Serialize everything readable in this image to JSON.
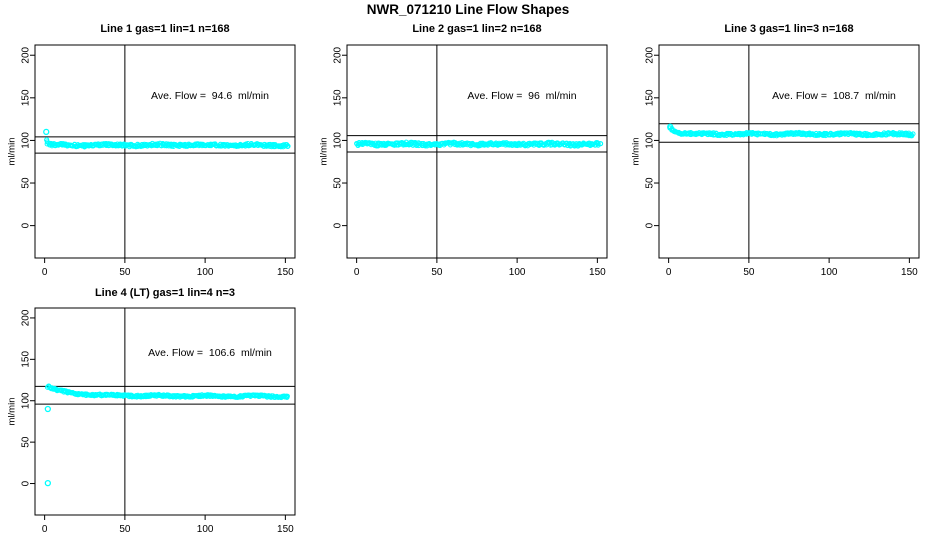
{
  "page_title": "NWR_071210  Line Flow Shapes",
  "colors": {
    "marker": "#00FFFF",
    "axis": "#000000",
    "background": "#FFFFFF",
    "text": "#000000"
  },
  "chart_data": [
    {
      "type": "scatter",
      "title": "Line 1 gas=1 lin=1 n=168",
      "annotation": "Ave. Flow =  94.6  ml/min",
      "ave_flow_ml_min": 94.6,
      "n": 168,
      "xlabel": "",
      "ylabel": "ml/min",
      "xlim": [
        -6,
        156
      ],
      "ylim": [
        -38,
        212
      ],
      "xticks": [
        0,
        50,
        100,
        150
      ],
      "yticks": [
        0,
        50,
        100,
        150,
        200
      ],
      "vline_x": 50,
      "hlines": [
        104.1,
        85.1
      ],
      "band": {
        "thickness": 2.5,
        "shape": [
          [
            1,
            101
          ],
          [
            2,
            96.5
          ],
          [
            4,
            94.8
          ],
          [
            8,
            94.3
          ],
          [
            20,
            94.2
          ],
          [
            40,
            94.4
          ],
          [
            70,
            94.6
          ],
          [
            100,
            94.7
          ],
          [
            130,
            94.4
          ],
          [
            152,
            94.3
          ]
        ]
      },
      "outliers": [
        [
          1,
          110
        ]
      ]
    },
    {
      "type": "scatter",
      "title": "Line 2 gas=1 lin=2 n=168",
      "annotation": "Ave. Flow =  96  ml/min",
      "ave_flow_ml_min": 96,
      "n": 168,
      "xlabel": "",
      "ylabel": "ml/min",
      "xlim": [
        -6,
        156
      ],
      "ylim": [
        -38,
        212
      ],
      "xticks": [
        0,
        50,
        100,
        150
      ],
      "yticks": [
        0,
        50,
        100,
        150,
        200
      ],
      "vline_x": 50,
      "hlines": [
        105.6,
        86.4
      ],
      "band": {
        "thickness": 3,
        "shape": [
          [
            0,
            94.5
          ],
          [
            2,
            95.8
          ],
          [
            10,
            95.8
          ],
          [
            40,
            95.6
          ],
          [
            80,
            95.5
          ],
          [
            120,
            95.5
          ],
          [
            152,
            95.3
          ]
        ]
      },
      "outliers": []
    },
    {
      "type": "scatter",
      "title": "Line 3 gas=1 lin=3 n=168",
      "annotation": "Ave. Flow =  108.7  ml/min",
      "ave_flow_ml_min": 108.7,
      "n": 168,
      "xlabel": "",
      "ylabel": "ml/min",
      "xlim": [
        -6,
        156
      ],
      "ylim": [
        -38,
        212
      ],
      "xticks": [
        0,
        50,
        100,
        150
      ],
      "yticks": [
        0,
        50,
        100,
        150,
        200
      ],
      "vline_x": 50,
      "hlines": [
        119.6,
        97.8
      ],
      "band": {
        "thickness": 2.5,
        "shape": [
          [
            1,
            115.5
          ],
          [
            2,
            112.5
          ],
          [
            4,
            110.2
          ],
          [
            7,
            108.8
          ],
          [
            12,
            108.1
          ],
          [
            20,
            107.7
          ],
          [
            40,
            107.5
          ],
          [
            80,
            107.4
          ],
          [
            120,
            107.4
          ],
          [
            152,
            107.1
          ]
        ]
      },
      "outliers": [
        [
          1,
          116
        ]
      ]
    },
    {
      "type": "scatter",
      "title": "Line 4 (LT) gas=1 lin=4 n=3",
      "annotation": "Ave. Flow =  106.6  ml/min",
      "ave_flow_ml_min": 106.6,
      "n": 3,
      "xlabel": "",
      "ylabel": "ml/min",
      "xlim": [
        -6,
        156
      ],
      "ylim": [
        -38,
        212
      ],
      "xticks": [
        0,
        50,
        100,
        150
      ],
      "yticks": [
        0,
        50,
        100,
        150,
        200
      ],
      "vline_x": 50,
      "hlines": [
        117.3,
        95.9
      ],
      "band": {
        "thickness": 2,
        "shape": [
          [
            2,
            117.3
          ],
          [
            3,
            116.4
          ],
          [
            5,
            114.7
          ],
          [
            8,
            112.7
          ],
          [
            12,
            110.7
          ],
          [
            17,
            109.2
          ],
          [
            23,
            108.1
          ],
          [
            30,
            107.2
          ],
          [
            40,
            106.5
          ],
          [
            55,
            106.1
          ],
          [
            75,
            105.8
          ],
          [
            100,
            105.6
          ],
          [
            125,
            105.5
          ],
          [
            152,
            105.2
          ]
        ]
      },
      "outliers": [
        [
          2,
          0.5
        ],
        [
          2,
          90
        ]
      ]
    }
  ]
}
